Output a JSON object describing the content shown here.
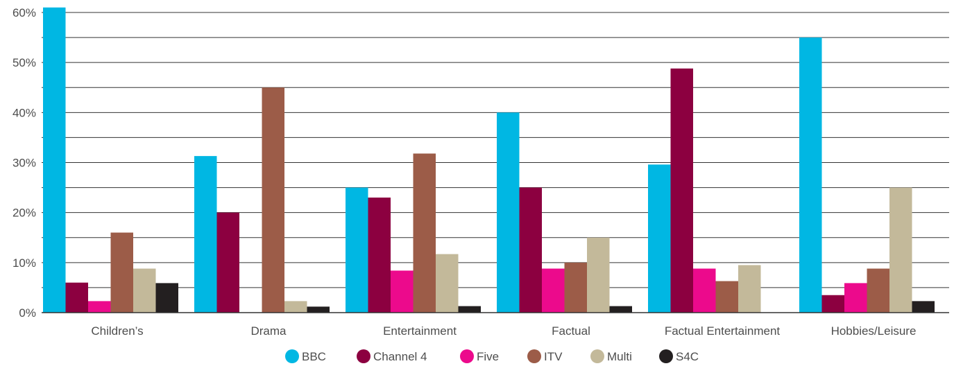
{
  "chart_data": {
    "type": "bar",
    "title": "",
    "xlabel": "",
    "ylabel": "",
    "ylim": [
      0,
      60
    ],
    "y_ticks": [
      "0%",
      "10%",
      "20%",
      "30%",
      "40%",
      "50%",
      "60%"
    ],
    "y_tick_values": [
      0,
      10,
      20,
      30,
      40,
      50,
      60
    ],
    "grid": true,
    "legend_position": "bottom",
    "categories": [
      "Children’s",
      "Drama",
      "Entertainment",
      "Factual",
      "Factual Entertainment",
      "Hobbies/Leisure"
    ],
    "series": [
      {
        "name": "BBC",
        "color": "#00b7e3",
        "values": [
          61,
          31.3,
          25,
          40,
          29.6,
          55
        ]
      },
      {
        "name": "Channel 4",
        "color": "#8c0040",
        "values": [
          6,
          20,
          23,
          25,
          48.8,
          3.5
        ]
      },
      {
        "name": "Five",
        "color": "#ec0a8c",
        "values": [
          2.3,
          0,
          8.4,
          8.8,
          8.8,
          5.9
        ]
      },
      {
        "name": "ITV",
        "color": "#9c5c48",
        "values": [
          16,
          45,
          31.8,
          10,
          6.3,
          8.8
        ]
      },
      {
        "name": "Multi",
        "color": "#c3b99a",
        "values": [
          8.8,
          2.3,
          11.7,
          15,
          9.5,
          25
        ]
      },
      {
        "name": "S4C",
        "color": "#231f20",
        "values": [
          5.9,
          1.2,
          1.3,
          1.3,
          0,
          2.3
        ]
      }
    ]
  }
}
